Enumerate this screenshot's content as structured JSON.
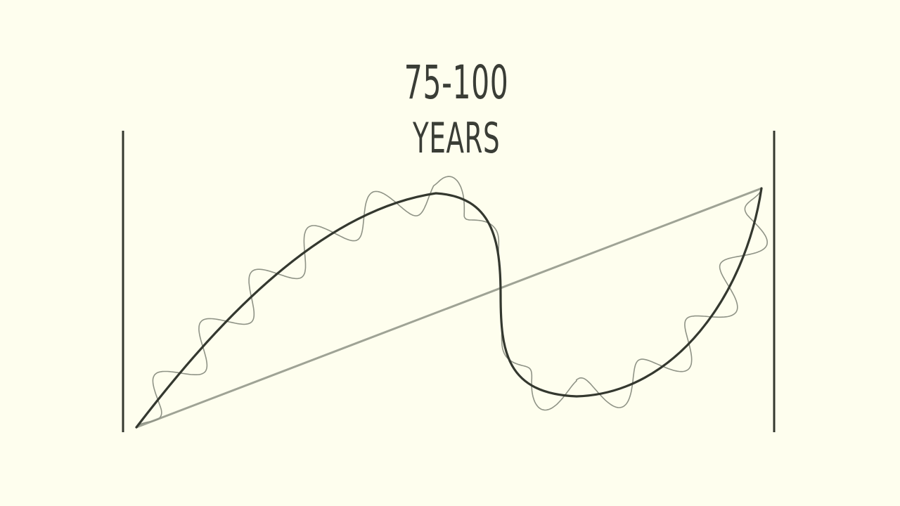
{
  "title": {
    "line1": "75-100",
    "line2": "YEARS"
  },
  "colors": {
    "background": "#fefeee",
    "ink": "#34382f",
    "trend_line": "#9fa395",
    "wave_line": "#8f9386"
  }
}
